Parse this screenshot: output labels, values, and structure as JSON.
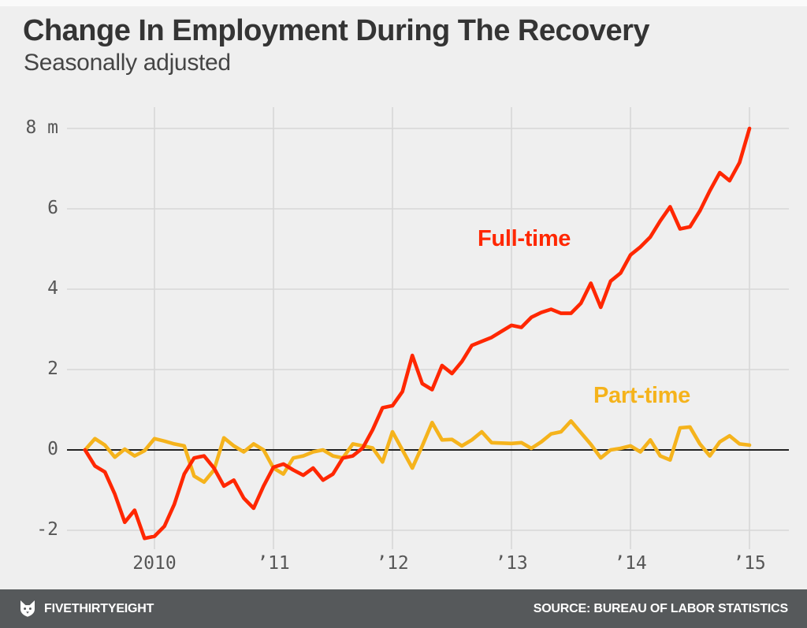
{
  "header": {
    "title": "Change In Employment During The Recovery",
    "subtitle": "Seasonally adjusted"
  },
  "footer": {
    "brand": "FIVETHIRTYEIGHT",
    "logo": "fox-icon",
    "source": "SOURCE: BUREAU OF LABOR STATISTICS",
    "bar_color": "#56595b",
    "text_color": "#ffffff"
  },
  "colors": {
    "background": "#efefef",
    "grid": "#d6d6d6",
    "zero_line": "#222222",
    "tick_label": "#565656",
    "title": "#343434",
    "subtitle": "#454545",
    "full_time": "#ff2700",
    "part_time": "#f5b31c"
  },
  "chart_data": {
    "type": "line",
    "title": "Change In Employment During The Recovery",
    "subtitle": "Seasonally adjusted",
    "unit": "millions of jobs (m)",
    "x_start": "2009-06",
    "x_end": "2015-01",
    "x_frequency": "monthly",
    "xlabel": "",
    "ylabel": "",
    "ylim": [
      -2.45,
      8.55
    ],
    "xlim_years": [
      2009.27,
      2015.33
    ],
    "grid": true,
    "zero_line": true,
    "legend_position": "inline-labels",
    "x_ticks": [
      {
        "label": "2010",
        "year": 2010
      },
      {
        "label": "’11",
        "year": 2011
      },
      {
        "label": "’12",
        "year": 2012
      },
      {
        "label": "’13",
        "year": 2013
      },
      {
        "label": "’14",
        "year": 2014
      },
      {
        "label": "’15",
        "year": 2015
      }
    ],
    "y_ticks": [
      {
        "label": "8 m",
        "value": 8
      },
      {
        "label": "6",
        "value": 6
      },
      {
        "label": "4",
        "value": 4
      },
      {
        "label": "2",
        "value": 2
      },
      {
        "label": "0",
        "value": 0
      },
      {
        "label": "-2",
        "value": -2
      }
    ],
    "series": [
      {
        "name": "Full-time",
        "color": "#ff2700",
        "values": [
          0,
          -0.4,
          -0.55,
          -1.1,
          -1.8,
          -1.5,
          -2.2,
          -2.15,
          -1.9,
          -1.35,
          -0.6,
          -0.2,
          -0.15,
          -0.45,
          -0.9,
          -0.75,
          -1.2,
          -1.45,
          -0.9,
          -0.43,
          -0.35,
          -0.5,
          -0.63,
          -0.45,
          -0.75,
          -0.6,
          -0.2,
          -0.15,
          0.05,
          0.5,
          1.05,
          1.1,
          1.45,
          2.35,
          1.65,
          1.5,
          2.1,
          1.9,
          2.2,
          2.6,
          2.7,
          2.8,
          2.95,
          3.1,
          3.05,
          3.3,
          3.42,
          3.5,
          3.4,
          3.4,
          3.65,
          4.15,
          3.55,
          4.2,
          4.4,
          4.85,
          5.05,
          5.3,
          5.7,
          6.05,
          5.5,
          5.55,
          5.95,
          6.45,
          6.9,
          6.7,
          7.15,
          8.0
        ]
      },
      {
        "name": "Part-time",
        "color": "#f5b31c",
        "values": [
          0,
          0.28,
          0.12,
          -0.18,
          0.02,
          -0.15,
          -0.02,
          0.28,
          0.22,
          0.15,
          0.1,
          -0.65,
          -0.8,
          -0.5,
          0.3,
          0.1,
          -0.05,
          0.15,
          0,
          -0.45,
          -0.6,
          -0.2,
          -0.15,
          -0.05,
          0,
          -0.15,
          -0.2,
          0.15,
          0.1,
          0.05,
          -0.3,
          0.45,
          0,
          -0.45,
          0.1,
          0.68,
          0.25,
          0.26,
          0.1,
          0.25,
          0.45,
          0.18,
          0.17,
          0.16,
          0.18,
          0.04,
          0.2,
          0.4,
          0.45,
          0.72,
          0.43,
          0.14,
          -0.2,
          0,
          0.04,
          0.1,
          -0.05,
          0.25,
          -0.15,
          -0.25,
          0.55,
          0.57,
          0.15,
          -0.15,
          0.2,
          0.35,
          0.15,
          0.12
        ]
      }
    ]
  }
}
